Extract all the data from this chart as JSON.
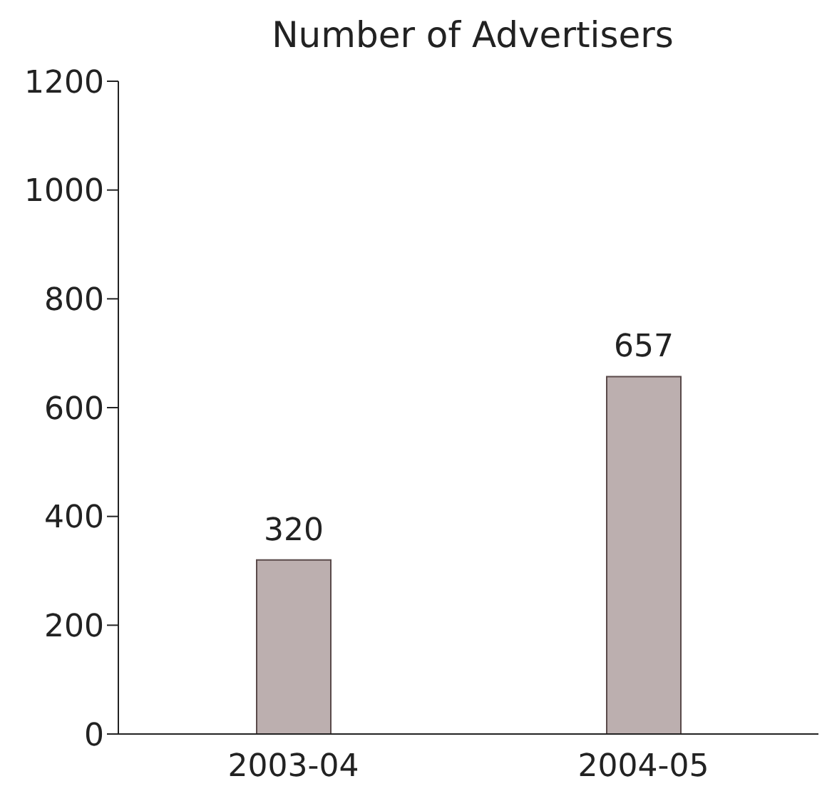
{
  "chart_data": {
    "type": "bar",
    "title": "Number of Advertisers",
    "categories": [
      "2003-04",
      "2004-05"
    ],
    "values": [
      320,
      657
    ],
    "color": "#bcafaf",
    "ylim": [
      0,
      1200
    ],
    "yticks": [
      0,
      200,
      400,
      600,
      800,
      1000,
      1200
    ],
    "data_labels": true
  }
}
